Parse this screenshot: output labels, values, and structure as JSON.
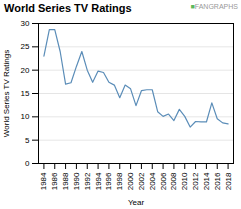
{
  "chart_data": {
    "type": "line",
    "title": "World Series TV Ratings",
    "xlabel": "Year",
    "ylabel": "World Series TV Ratings",
    "x": [
      1984,
      1985,
      1986,
      1987,
      1988,
      1989,
      1990,
      1991,
      1992,
      1993,
      1994,
      1995,
      1996,
      1997,
      1998,
      1999,
      2000,
      2001,
      2002,
      2003,
      2004,
      2005,
      2006,
      2007,
      2008,
      2009,
      2010,
      2011,
      2012,
      2013,
      2014,
      2015,
      2016,
      2017,
      2018
    ],
    "values": [
      23.0,
      28.7,
      28.7,
      24.0,
      17.0,
      17.3,
      20.8,
      24.0,
      20.0,
      17.4,
      19.8,
      19.5,
      17.4,
      16.8,
      14.1,
      16.8,
      16.0,
      12.4,
      15.6,
      15.8,
      15.8,
      11.1,
      10.1,
      10.6,
      9.2,
      11.6,
      10.1,
      7.8,
      9.0,
      8.9,
      8.9,
      13.0,
      9.6,
      8.7,
      8.5
    ],
    "color": "#5b8db8",
    "xlim": [
      1983,
      2019
    ],
    "xticks": [
      1984,
      1986,
      1988,
      1990,
      1992,
      1994,
      1996,
      1998,
      2000,
      2002,
      2004,
      2006,
      2008,
      2010,
      2012,
      2014,
      2016,
      2018
    ],
    "ylim": [
      0,
      30
    ],
    "yticks": [
      0,
      5,
      10,
      15,
      20,
      25,
      30
    ],
    "grid": "y",
    "annotations": [
      "■FANGRAPHS"
    ]
  }
}
